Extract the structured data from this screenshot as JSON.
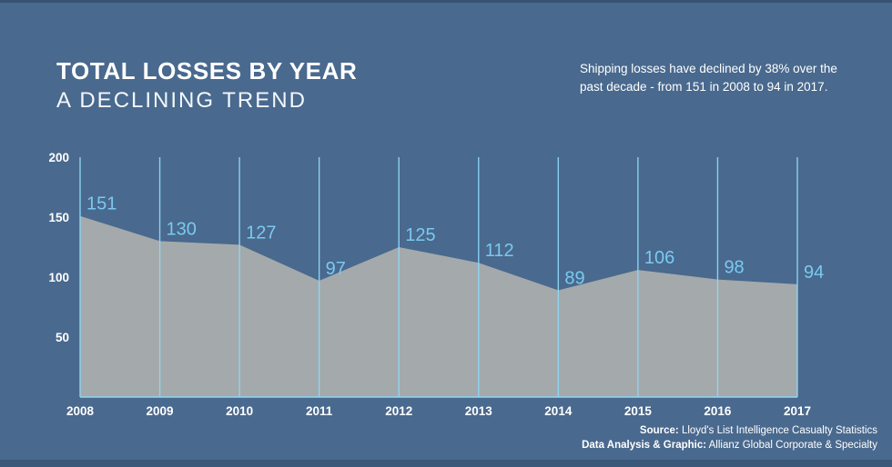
{
  "header": {
    "title": "TOTAL LOSSES BY YEAR",
    "subtitle": "A DECLINING TREND",
    "description": "Shipping losses have declined by 38% over the past decade - from 151 in 2008 to 94 in 2017."
  },
  "chart_data": {
    "type": "area",
    "title": "TOTAL LOSSES BY YEAR",
    "subtitle": "A DECLINING TREND",
    "categories": [
      "2008",
      "2009",
      "2010",
      "2011",
      "2012",
      "2013",
      "2014",
      "2015",
      "2016",
      "2017"
    ],
    "values": [
      151,
      130,
      127,
      97,
      125,
      112,
      89,
      106,
      98,
      94
    ],
    "xlabel": "",
    "ylabel": "",
    "yticks": [
      50,
      100,
      150,
      200
    ],
    "ylim": [
      0,
      200
    ],
    "grid": "vertical-per-category",
    "legend": "none",
    "annotations": "each data point labeled with its value in light blue"
  },
  "footer": {
    "source_label": "Source:",
    "source_value": "Lloyd's List Intelligence Casualty Statistics",
    "credit_label": "Data Analysis & Graphic:",
    "credit_value": "Allianz Global Corporate & Specialty"
  },
  "colors": {
    "background": "#49698e",
    "area_fill": "#a4a9ab",
    "gridline": "#8ed7f4",
    "data_label": "#7bc9ef",
    "axis_text": "#ffffff"
  }
}
